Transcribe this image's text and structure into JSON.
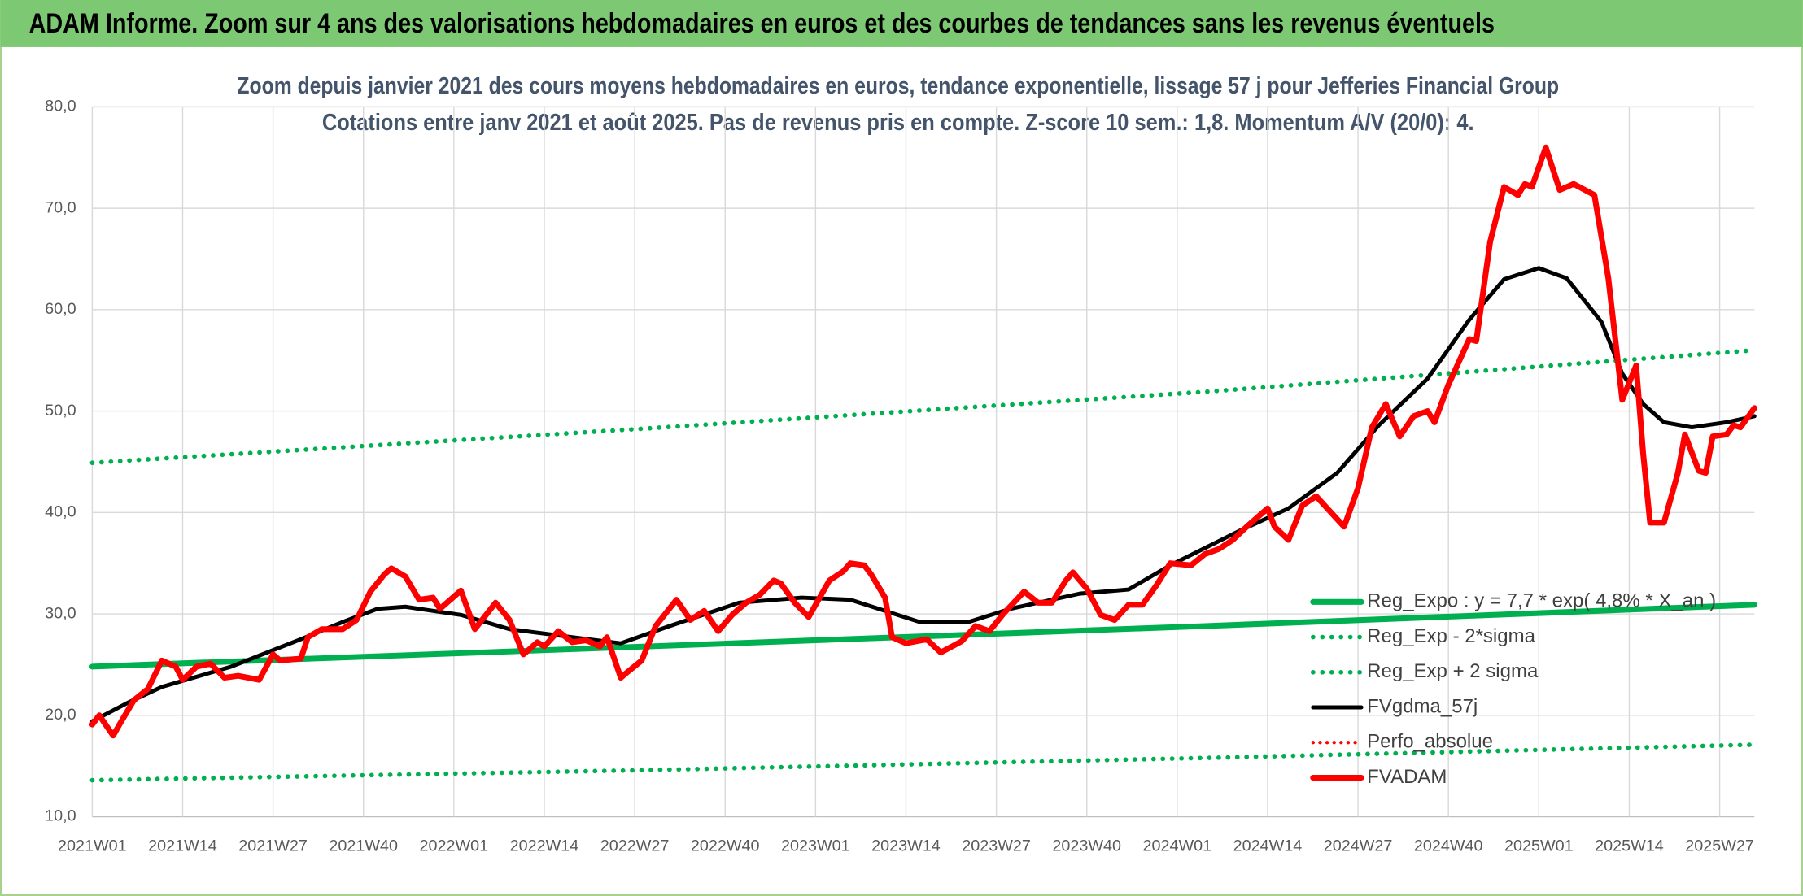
{
  "header": {
    "title": "ADAM Informe. Zoom sur 4 ans des valorisations hebdomadaires en euros et des courbes de tendances sans les revenus éventuels"
  },
  "chart_data": {
    "type": "line",
    "title": "Zoom depuis janvier 2021 des cours moyens hebdomadaires en euros, tendance exponentielle, lissage 57 j pour Jefferies Financial Group",
    "subtitle": "Cotations entre janv 2021 et août 2025. Pas de revenus pris en compte. Z-score 10 sem.: 1,8. Momentum A/V (20/0): 4.",
    "xlim": [
      0,
      239
    ],
    "xticks": [
      {
        "value": 0,
        "label": "2021W01"
      },
      {
        "value": 13,
        "label": "2021W14"
      },
      {
        "value": 26,
        "label": "2021W27"
      },
      {
        "value": 39,
        "label": "2021W40"
      },
      {
        "value": 52,
        "label": "2022W01"
      },
      {
        "value": 65,
        "label": "2022W14"
      },
      {
        "value": 78,
        "label": "2022W27"
      },
      {
        "value": 91,
        "label": "2022W40"
      },
      {
        "value": 104,
        "label": "2023W01"
      },
      {
        "value": 117,
        "label": "2023W14"
      },
      {
        "value": 130,
        "label": "2023W27"
      },
      {
        "value": 143,
        "label": "2023W40"
      },
      {
        "value": 156,
        "label": "2024W01"
      },
      {
        "value": 169,
        "label": "2024W14"
      },
      {
        "value": 182,
        "label": "2024W27"
      },
      {
        "value": 195,
        "label": "2024W40"
      },
      {
        "value": 208,
        "label": "2025W01"
      },
      {
        "value": 221,
        "label": "2025W14"
      },
      {
        "value": 234,
        "label": "2025W27"
      }
    ],
    "ylim": [
      10,
      80
    ],
    "yticks": [
      {
        "value": 10,
        "label": "10,0"
      },
      {
        "value": 20,
        "label": "20,0"
      },
      {
        "value": 30,
        "label": "30,0"
      },
      {
        "value": 40,
        "label": "40,0"
      },
      {
        "value": 50,
        "label": "50,0"
      },
      {
        "value": 60,
        "label": "60,0"
      },
      {
        "value": 70,
        "label": "70,0"
      },
      {
        "value": 80,
        "label": "80,0"
      }
    ],
    "grid": true,
    "legend": "right",
    "series": [
      {
        "name": "Reg_Expo : y = 7,7 * exp( 4,8% * X_an )",
        "color": "#00b050",
        "style": "solid",
        "width": 5,
        "x": [
          0,
          80,
          160,
          239
        ],
        "values": [
          24.8,
          26.8,
          28.8,
          30.9
        ]
      },
      {
        "name": "Reg_Exp - 2*sigma",
        "color": "#00b050",
        "style": "dotted",
        "width": 4,
        "x": [
          0,
          80,
          160,
          239
        ],
        "values": [
          13.6,
          14.6,
          15.8,
          17.1
        ]
      },
      {
        "name": "Reg_Exp + 2 sigma",
        "color": "#00b050",
        "style": "dotted",
        "width": 4,
        "x": [
          0,
          80,
          160,
          239
        ],
        "values": [
          44.9,
          48.3,
          51.9,
          56.0
        ]
      },
      {
        "name": "FVgdma_57j",
        "color": "#000000",
        "style": "solid",
        "width": 3.5,
        "x": [
          0,
          5,
          10,
          20,
          30,
          36,
          41,
          45,
          53,
          60,
          69,
          76,
          83,
          93,
          102,
          109,
          119,
          126,
          132,
          142,
          149,
          155,
          165,
          172,
          179,
          185,
          192,
          198,
          203,
          208,
          212,
          217,
          220,
          223,
          226,
          230,
          235,
          239
        ],
        "values": [
          19.4,
          21.2,
          22.8,
          24.8,
          27.5,
          29.2,
          30.5,
          30.7,
          29.9,
          28.5,
          27.7,
          27.1,
          28.8,
          31.1,
          31.6,
          31.4,
          29.2,
          29.2,
          30.5,
          32.0,
          32.4,
          34.8,
          38.2,
          40.4,
          43.9,
          48.6,
          53.2,
          59.0,
          63.0,
          64.1,
          63.1,
          58.8,
          53.7,
          50.7,
          48.9,
          48.4,
          48.9,
          49.5
        ]
      },
      {
        "name": "Perfo_absolue",
        "color": "#ff0000",
        "style": "dotted",
        "width": 3,
        "x": [],
        "values": []
      },
      {
        "name": "FVADAM",
        "color": "#ff0000",
        "style": "solid",
        "width": 5,
        "x": [
          0,
          1,
          3,
          4,
          6,
          8,
          10,
          12,
          13,
          15,
          17,
          19,
          21,
          24,
          26,
          27,
          30,
          31,
          33,
          36,
          38,
          40,
          42,
          43,
          45,
          47,
          49,
          50,
          53,
          55,
          58,
          60,
          62,
          64,
          65,
          67,
          69,
          71,
          73,
          74,
          76,
          77,
          79,
          81,
          84,
          86,
          88,
          90,
          92,
          94,
          96,
          98,
          99,
          101,
          103,
          106,
          108,
          109,
          111,
          112,
          114,
          115,
          117,
          120,
          122,
          125,
          127,
          129,
          131,
          134,
          136,
          138,
          140,
          141,
          143,
          145,
          147,
          149,
          151,
          153,
          155,
          158,
          160,
          162,
          164,
          166,
          169,
          170,
          172,
          174,
          176,
          178,
          180,
          182,
          184,
          186,
          188,
          190,
          192,
          193,
          195,
          198,
          199,
          201,
          203,
          205,
          206,
          207,
          209,
          211,
          213,
          216,
          218,
          220,
          222,
          223,
          224,
          226,
          228,
          229,
          231,
          232,
          233,
          235,
          236,
          237,
          239
        ],
        "values": [
          19.1,
          20.0,
          18.0,
          19.2,
          21.5,
          22.6,
          25.4,
          24.8,
          23.5,
          24.8,
          25.1,
          23.7,
          23.9,
          23.5,
          26.0,
          25.4,
          25.6,
          27.7,
          28.5,
          28.5,
          29.4,
          32.2,
          33.9,
          34.5,
          33.7,
          31.4,
          31.6,
          30.5,
          32.3,
          28.5,
          31.1,
          29.4,
          26.0,
          27.2,
          26.8,
          28.3,
          27.2,
          27.4,
          26.8,
          27.7,
          23.7,
          24.3,
          25.4,
          28.8,
          31.4,
          29.4,
          30.3,
          28.3,
          29.9,
          31.1,
          31.9,
          33.3,
          33.0,
          31.1,
          29.7,
          33.3,
          34.2,
          35.0,
          34.8,
          33.9,
          31.6,
          27.7,
          27.1,
          27.5,
          26.2,
          27.3,
          28.8,
          28.3,
          30.0,
          32.2,
          31.1,
          31.1,
          33.3,
          34.1,
          32.5,
          29.9,
          29.4,
          30.9,
          30.9,
          32.8,
          35.0,
          34.8,
          35.9,
          36.4,
          37.3,
          38.6,
          40.4,
          38.6,
          37.3,
          40.7,
          41.6,
          40.1,
          38.6,
          42.4,
          48.4,
          50.7,
          47.5,
          49.5,
          50.0,
          48.9,
          52.6,
          57.1,
          56.9,
          66.7,
          72.1,
          71.3,
          72.4,
          72.1,
          76.0,
          71.8,
          72.4,
          71.3,
          63.1,
          51.1,
          54.5,
          45.8,
          39.0,
          39.0,
          43.9,
          47.7,
          44.1,
          43.9,
          47.5,
          47.7,
          48.6,
          48.4,
          50.3
        ]
      }
    ]
  }
}
